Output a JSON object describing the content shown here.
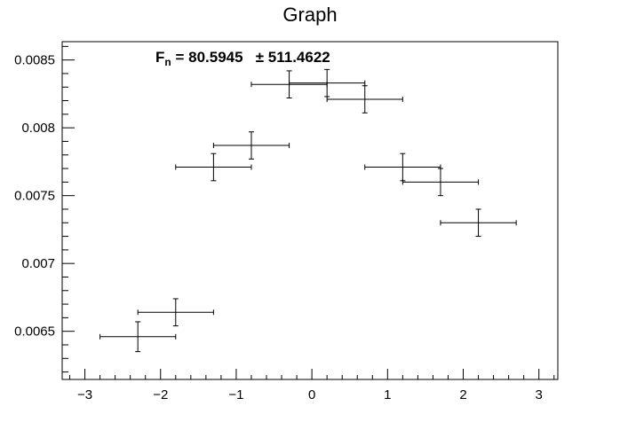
{
  "chart_data": {
    "type": "scatter",
    "title": "Graph",
    "annotation": {
      "prefix": "F",
      "subscript": "n",
      "text": " = 80.5945   ± 511.4622"
    },
    "xlabel": "",
    "ylabel": "",
    "xlim": [
      -3.3,
      3.25
    ],
    "ylim": [
      0.006145,
      0.008635
    ],
    "x_ticks": [
      -3,
      -2,
      -1,
      0,
      1,
      2,
      3
    ],
    "x_tick_labels": [
      "−3",
      "−2",
      "−1",
      "0",
      "1",
      "2",
      "3"
    ],
    "y_ticks": [
      0.0065,
      0.007,
      0.0075,
      0.008,
      0.0085
    ],
    "y_tick_labels": [
      "0.0065",
      "0.007",
      "0.0075",
      "0.008",
      "0.0085"
    ],
    "points": [
      {
        "x": -2.3,
        "y": 0.00646,
        "ex": 0.5,
        "ey": 0.00011
      },
      {
        "x": -1.8,
        "y": 0.00664,
        "ex": 0.5,
        "ey": 0.0001
      },
      {
        "x": -1.3,
        "y": 0.00771,
        "ex": 0.5,
        "ey": 0.0001
      },
      {
        "x": -0.8,
        "y": 0.00787,
        "ex": 0.5,
        "ey": 0.0001
      },
      {
        "x": -0.3,
        "y": 0.00832,
        "ex": 0.5,
        "ey": 0.0001
      },
      {
        "x": 0.2,
        "y": 0.00833,
        "ex": 0.5,
        "ey": 0.0001
      },
      {
        "x": 0.7,
        "y": 0.00821,
        "ex": 0.5,
        "ey": 0.0001
      },
      {
        "x": 1.2,
        "y": 0.00771,
        "ex": 0.5,
        "ey": 0.0001
      },
      {
        "x": 1.7,
        "y": 0.0076,
        "ex": 0.5,
        "ey": 0.0001
      },
      {
        "x": 2.2,
        "y": 0.0073,
        "ex": 0.5,
        "ey": 0.0001
      }
    ],
    "grid": false,
    "colors": {
      "marker": "#000000",
      "frame": "#000000",
      "background": "#ffffff"
    }
  }
}
